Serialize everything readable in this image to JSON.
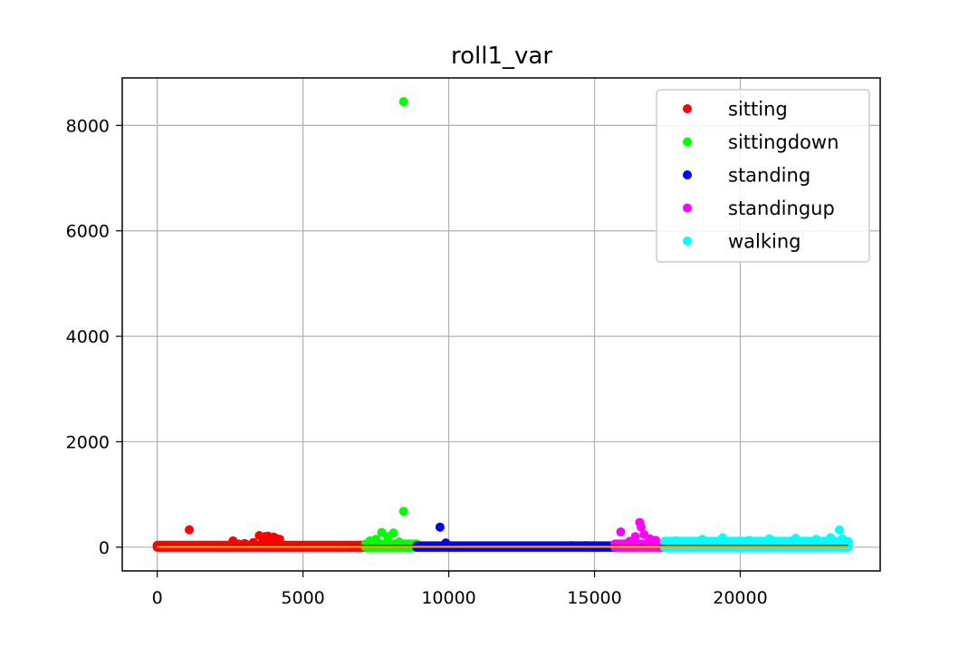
{
  "chart_data": {
    "type": "scatter",
    "title": "roll1_var",
    "xlabel": "",
    "ylabel": "",
    "xlim": [
      -1200,
      24800
    ],
    "ylim": [
      -450,
      8900
    ],
    "x_ticks": [
      0,
      5000,
      10000,
      15000,
      20000
    ],
    "x_tick_labels": [
      "0",
      "5000",
      "10000",
      "15000",
      "20000"
    ],
    "y_ticks": [
      0,
      2000,
      4000,
      6000,
      8000
    ],
    "y_tick_labels": [
      "0",
      "2000",
      "4000",
      "6000",
      "8000"
    ],
    "grid": true,
    "legend_position": "top-right",
    "series": [
      {
        "name": "sitting",
        "color": "#ff0000",
        "x": [
          1100,
          2600,
          3300,
          3500,
          3600,
          3700,
          3800,
          3900,
          4000,
          4100,
          4200,
          3000,
          2800
        ],
        "y": [
          330,
          120,
          90,
          220,
          180,
          200,
          210,
          170,
          190,
          160,
          150,
          70,
          60
        ],
        "band": {
          "x_start": 0,
          "x_end": 7150,
          "y_min": 0,
          "y_max": 35
        }
      },
      {
        "name": "sittingdown",
        "color": "#00ff00",
        "x": [
          8450,
          8450,
          7700,
          7900,
          8100,
          7500,
          8300,
          7300
        ],
        "y": [
          8450,
          680,
          280,
          200,
          270,
          150,
          100,
          120
        ],
        "band": {
          "x_start": 7150,
          "x_end": 8900,
          "y_min": 0,
          "y_max": 60
        }
      },
      {
        "name": "standing",
        "color": "#0000ff",
        "x": [
          9700,
          9900,
          14200,
          14700,
          11000
        ],
        "y": [
          380,
          80,
          30,
          30,
          20
        ],
        "band": {
          "x_start": 8900,
          "x_end": 15700,
          "y_min": 0,
          "y_max": 25
        }
      },
      {
        "name": "standingup",
        "color": "#ff00ff",
        "x": [
          16550,
          15900,
          16600,
          16700,
          16400,
          16900,
          17100,
          16200
        ],
        "y": [
          470,
          290,
          380,
          240,
          200,
          160,
          130,
          110
        ],
        "band": {
          "x_start": 15700,
          "x_end": 17400,
          "y_min": 0,
          "y_max": 60
        }
      },
      {
        "name": "walking",
        "color": "#00ffff",
        "x": [
          23400,
          17800,
          18700,
          19400,
          20300,
          21000,
          21900,
          22600,
          23100,
          23500
        ],
        "y": [
          330,
          120,
          150,
          180,
          130,
          160,
          170,
          150,
          180,
          160
        ],
        "band": {
          "x_start": 17400,
          "x_end": 23700,
          "y_min": 0,
          "y_max": 110
        }
      }
    ]
  }
}
